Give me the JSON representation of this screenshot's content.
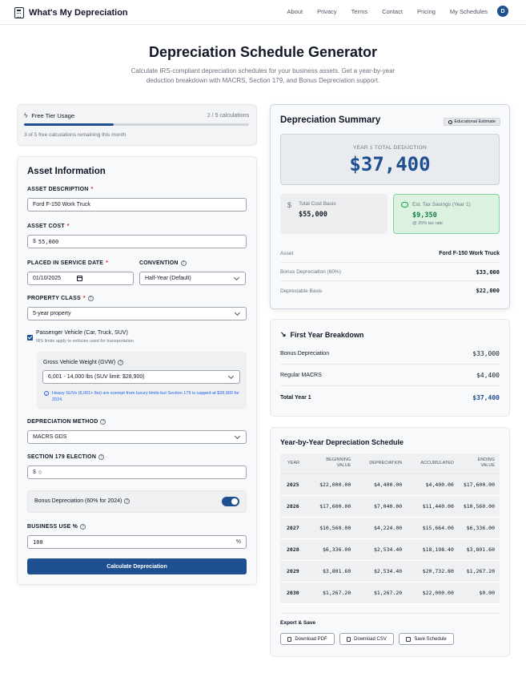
{
  "header": {
    "app_name": "What's My Depreciation",
    "nav": [
      "About",
      "Privacy",
      "Terms",
      "Contact",
      "Pricing",
      "My Schedules"
    ],
    "avatar_initial": "D"
  },
  "hero": {
    "title": "Depreciation Schedule Generator",
    "subtitle": "Calculate IRS-compliant depreciation schedules for your business assets. Get a year-by-year deduction breakdown with MACRS, Section 179, and Bonus Depreciation support."
  },
  "free_tier": {
    "title": "Free Tier Usage",
    "count": "2 / 5 calculations",
    "progress": 0.4,
    "remaining": "3 of 5 free calculations remaining this month"
  },
  "asset_form": {
    "title": "Asset Information",
    "description_label": "ASSET DESCRIPTION",
    "description_value": "Ford F-150 Work Truck",
    "cost_label": "ASSET COST",
    "cost_prefix": "$",
    "cost_value": "55,000",
    "service_date_label": "PLACED IN SERVICE DATE",
    "service_date_value": "01/10/2025",
    "convention_label": "CONVENTION",
    "convention_value": "Half-Year (Default)",
    "property_class_label": "PROPERTY CLASS",
    "property_class_value": "5-year property",
    "passenger_label": "Passenger Vehicle (Car, Truck, SUV)",
    "passenger_sub": "IRS limits apply to vehicles used for transportation",
    "passenger_checked": true,
    "gvw_label": "Gross Vehicle Weight (GVW)",
    "gvw_value": "6,001 - 14,000 lbs (SUV limit: $28,900)",
    "gvw_note": "Heavy SUVs (6,001+ lbs) are exempt from luxury limits but Section 179 is capped at $28,900 for 2024.",
    "method_label": "DEPRECIATION METHOD",
    "method_value": "MACRS GDS",
    "s179_label": "SECTION 179 ELECTION",
    "s179_prefix": "$",
    "s179_placeholder": "0",
    "bonus_label": "Bonus Depreciation (60% for 2024)",
    "bonus_enabled": true,
    "business_use_label": "BUSINESS USE %",
    "business_use_value": "100",
    "business_use_suffix": "%",
    "calculate_label": "Calculate Depreciation"
  },
  "summary": {
    "title": "Depreciation Summary",
    "badge": "Educational Estimate",
    "total_label": "YEAR 1 TOTAL DEDUCTION",
    "total_value": "$37,400",
    "basis_label": "Total Cost Basis",
    "basis_value": "$55,000",
    "savings_label": "Est. Tax Savings (Year 1)",
    "savings_value": "$9,350",
    "savings_sub": "@ 25% tax rate",
    "rows": [
      {
        "key": "Asset",
        "value": "Ford F-150 Work Truck"
      },
      {
        "key": "Bonus Depreciation (60%)",
        "value": "$33,000"
      },
      {
        "key": "Depreciable Basis",
        "value": "$22,000"
      }
    ]
  },
  "breakdown": {
    "title": "First Year Breakdown",
    "rows": [
      {
        "key": "Bonus Depreciation",
        "value": "$33,000"
      },
      {
        "key": "Regular MACRS",
        "value": "$4,400"
      },
      {
        "key": "Total Year 1",
        "value": "$37,400"
      }
    ]
  },
  "schedule": {
    "title": "Year-by-Year Depreciation Schedule",
    "columns": [
      "YEAR",
      "BEGINNING VALUE",
      "DEPRECIATION",
      "ACCUMULATED",
      "ENDING VALUE"
    ],
    "rows": [
      [
        "2025",
        "$22,000.00",
        "$4,400.00",
        "$4,400.00",
        "$17,600.00"
      ],
      [
        "2026",
        "$17,600.00",
        "$7,040.00",
        "$11,440.00",
        "$10,560.00"
      ],
      [
        "2027",
        "$10,560.00",
        "$4,224.00",
        "$15,664.00",
        "$6,336.00"
      ],
      [
        "2028",
        "$6,336.00",
        "$2,534.40",
        "$18,198.40",
        "$3,801.60"
      ],
      [
        "2029",
        "$3,801.60",
        "$2,534.40",
        "$20,732.80",
        "$1,267.20"
      ],
      [
        "2030",
        "$1,267.20",
        "$1,267.20",
        "$22,000.00",
        "$0.00"
      ]
    ],
    "export_title": "Export & Save",
    "buttons": [
      "Download PDF",
      "Download CSV",
      "Save Schedule"
    ]
  }
}
